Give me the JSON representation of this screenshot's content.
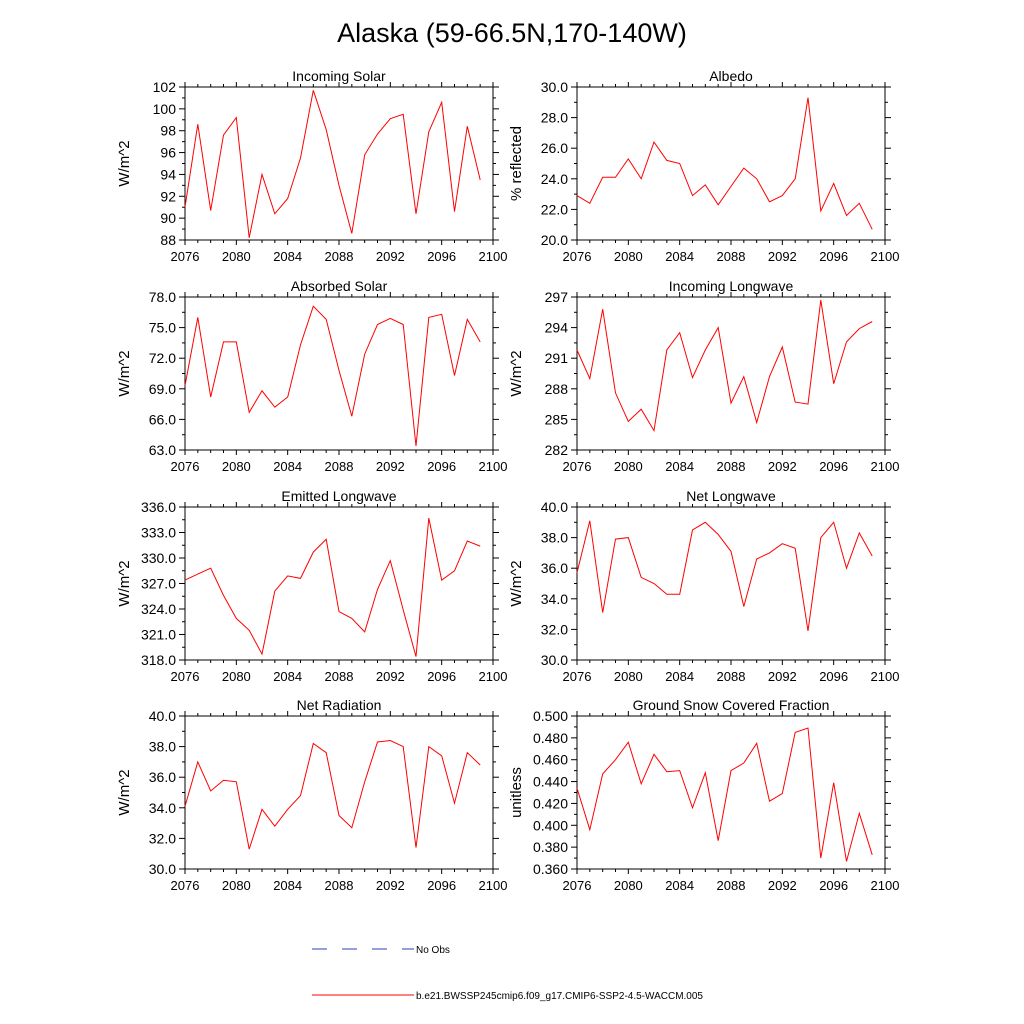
{
  "page_title": "Alaska (59-66.5N,170-140W)",
  "legend": {
    "obs_label": "No Obs",
    "model_label": "b.e21.BWSSP245cmip6.f09_g17.CMIP6-SSP2-4.5-WACCM.005",
    "obs_color": "#2a3fb8",
    "model_color": "#ff0000"
  },
  "chart_data": [
    {
      "type": "line",
      "title": "Incoming Solar",
      "ylabel": "W/m^2",
      "xlim": [
        2076,
        2100
      ],
      "ylim": [
        88,
        102
      ],
      "xticks": [
        2076,
        2080,
        2084,
        2088,
        2092,
        2096,
        2100
      ],
      "yticks": [
        88,
        90,
        92,
        94,
        96,
        98,
        100,
        102
      ],
      "ytick_labels": [
        "88",
        "90",
        "92",
        "94",
        "96",
        "98",
        "100",
        "102"
      ],
      "x": [
        2076,
        2077,
        2078,
        2079,
        2080,
        2081,
        2082,
        2083,
        2084,
        2085,
        2086,
        2087,
        2088,
        2089,
        2090,
        2091,
        2092,
        2093,
        2094,
        2095,
        2096,
        2097,
        2098,
        2099
      ],
      "series": [
        {
          "values": [
            91.0,
            98.6,
            90.7,
            97.6,
            99.2,
            88.2,
            94.0,
            90.4,
            91.8,
            95.5,
            101.7,
            98.1,
            93.0,
            88.6,
            95.8,
            97.7,
            99.1,
            99.5,
            90.4,
            97.9,
            100.6,
            90.6,
            98.4,
            93.5
          ]
        }
      ]
    },
    {
      "type": "line",
      "title": "Albedo",
      "ylabel": "% reflected",
      "xlim": [
        2076,
        2100
      ],
      "ylim": [
        20,
        30
      ],
      "xticks": [
        2076,
        2080,
        2084,
        2088,
        2092,
        2096,
        2100
      ],
      "yticks": [
        20,
        22,
        24,
        26,
        28,
        30
      ],
      "ytick_labels": [
        "20.0",
        "22.0",
        "24.0",
        "26.0",
        "28.0",
        "30.0"
      ],
      "x": [
        2076,
        2077,
        2078,
        2079,
        2080,
        2081,
        2082,
        2083,
        2084,
        2085,
        2086,
        2087,
        2088,
        2089,
        2090,
        2091,
        2092,
        2093,
        2094,
        2095,
        2096,
        2097,
        2098,
        2099
      ],
      "series": [
        {
          "values": [
            22.9,
            22.4,
            24.1,
            24.1,
            25.3,
            24.0,
            26.4,
            25.2,
            25.0,
            22.9,
            23.6,
            22.3,
            23.5,
            24.7,
            24.0,
            22.5,
            22.9,
            24.0,
            29.3,
            21.9,
            23.7,
            21.6,
            22.4,
            20.7
          ]
        }
      ]
    },
    {
      "type": "line",
      "title": "Absorbed Solar",
      "ylabel": "W/m^2",
      "xlim": [
        2076,
        2100
      ],
      "ylim": [
        63,
        78
      ],
      "xticks": [
        2076,
        2080,
        2084,
        2088,
        2092,
        2096,
        2100
      ],
      "yticks": [
        63,
        66,
        69,
        72,
        75,
        78
      ],
      "ytick_labels": [
        "63.0",
        "66.0",
        "69.0",
        "72.0",
        "75.0",
        "78.0"
      ],
      "x": [
        2076,
        2077,
        2078,
        2079,
        2080,
        2081,
        2082,
        2083,
        2084,
        2085,
        2086,
        2087,
        2088,
        2089,
        2090,
        2091,
        2092,
        2093,
        2094,
        2095,
        2096,
        2097,
        2098,
        2099
      ],
      "series": [
        {
          "values": [
            69.3,
            76.0,
            68.2,
            73.6,
            73.6,
            66.7,
            68.8,
            67.2,
            68.2,
            73.3,
            77.1,
            75.8,
            70.8,
            66.3,
            72.4,
            75.3,
            75.9,
            75.3,
            63.4,
            76.0,
            76.3,
            70.3,
            75.8,
            73.6
          ]
        }
      ]
    },
    {
      "type": "line",
      "title": "Incoming Longwave",
      "ylabel": "W/m^2",
      "xlim": [
        2076,
        2100
      ],
      "ylim": [
        282,
        297
      ],
      "xticks": [
        2076,
        2080,
        2084,
        2088,
        2092,
        2096,
        2100
      ],
      "yticks": [
        282,
        285,
        288,
        291,
        294,
        297
      ],
      "ytick_labels": [
        "282",
        "285",
        "288",
        "291",
        "294",
        "297"
      ],
      "x": [
        2076,
        2077,
        2078,
        2079,
        2080,
        2081,
        2082,
        2083,
        2084,
        2085,
        2086,
        2087,
        2088,
        2089,
        2090,
        2091,
        2092,
        2093,
        2094,
        2095,
        2096,
        2097,
        2098,
        2099
      ],
      "series": [
        {
          "values": [
            291.8,
            289.0,
            295.8,
            287.6,
            284.8,
            286.0,
            283.9,
            291.8,
            293.5,
            289.1,
            291.8,
            294.0,
            286.6,
            289.2,
            284.7,
            289.2,
            292.1,
            286.7,
            286.5,
            296.7,
            288.5,
            292.6,
            293.9,
            294.6
          ]
        }
      ]
    },
    {
      "type": "line",
      "title": "Emitted Longwave",
      "ylabel": "W/m^2",
      "xlim": [
        2076,
        2100
      ],
      "ylim": [
        318,
        336
      ],
      "xticks": [
        2076,
        2080,
        2084,
        2088,
        2092,
        2096,
        2100
      ],
      "yticks": [
        318,
        321,
        324,
        327,
        330,
        333,
        336
      ],
      "ytick_labels": [
        "318.0",
        "321.0",
        "324.0",
        "327.0",
        "330.0",
        "333.0",
        "336.0"
      ],
      "x": [
        2076,
        2077,
        2078,
        2079,
        2080,
        2081,
        2082,
        2083,
        2084,
        2085,
        2086,
        2087,
        2088,
        2089,
        2090,
        2091,
        2092,
        2093,
        2094,
        2095,
        2096,
        2097,
        2098,
        2099
      ],
      "series": [
        {
          "values": [
            327.4,
            328.1,
            328.8,
            325.6,
            322.9,
            321.5,
            318.7,
            326.1,
            327.9,
            327.6,
            330.7,
            332.2,
            323.7,
            322.9,
            321.3,
            326.3,
            329.7,
            323.9,
            318.4,
            334.7,
            327.4,
            328.5,
            332.0,
            331.4
          ]
        }
      ]
    },
    {
      "type": "line",
      "title": "Net Longwave",
      "ylabel": "W/m^2",
      "xlim": [
        2076,
        2100
      ],
      "ylim": [
        30,
        40
      ],
      "xticks": [
        2076,
        2080,
        2084,
        2088,
        2092,
        2096,
        2100
      ],
      "yticks": [
        30,
        32,
        34,
        36,
        38,
        40
      ],
      "ytick_labels": [
        "30.0",
        "32.0",
        "34.0",
        "36.0",
        "38.0",
        "40.0"
      ],
      "x": [
        2076,
        2077,
        2078,
        2079,
        2080,
        2081,
        2082,
        2083,
        2084,
        2085,
        2086,
        2087,
        2088,
        2089,
        2090,
        2091,
        2092,
        2093,
        2094,
        2095,
        2096,
        2097,
        2098,
        2099
      ],
      "series": [
        {
          "values": [
            35.7,
            39.1,
            33.1,
            37.9,
            38.0,
            35.4,
            35.0,
            34.3,
            34.3,
            38.5,
            39.0,
            38.2,
            37.1,
            33.5,
            36.6,
            37.0,
            37.6,
            37.3,
            31.9,
            38.0,
            39.0,
            36.0,
            38.3,
            36.8
          ]
        }
      ]
    },
    {
      "type": "line",
      "title": "Net Radiation",
      "ylabel": "W/m^2",
      "xlim": [
        2076,
        2100
      ],
      "ylim": [
        30,
        40
      ],
      "xticks": [
        2076,
        2080,
        2084,
        2088,
        2092,
        2096,
        2100
      ],
      "yticks": [
        30,
        32,
        34,
        36,
        38,
        40
      ],
      "ytick_labels": [
        "30.0",
        "32.0",
        "34.0",
        "36.0",
        "38.0",
        "40.0"
      ],
      "x": [
        2076,
        2077,
        2078,
        2079,
        2080,
        2081,
        2082,
        2083,
        2084,
        2085,
        2086,
        2087,
        2088,
        2089,
        2090,
        2091,
        2092,
        2093,
        2094,
        2095,
        2096,
        2097,
        2098,
        2099
      ],
      "series": [
        {
          "values": [
            34.1,
            37.0,
            35.1,
            35.8,
            35.7,
            31.3,
            33.9,
            32.8,
            33.9,
            34.8,
            38.2,
            37.6,
            33.5,
            32.7,
            35.7,
            38.3,
            38.4,
            38.0,
            31.4,
            38.0,
            37.4,
            34.3,
            37.6,
            36.8
          ]
        }
      ]
    },
    {
      "type": "line",
      "title": "Ground Snow Covered Fraction",
      "ylabel": "unitless",
      "xlim": [
        2076,
        2100
      ],
      "ylim": [
        0.36,
        0.5
      ],
      "xticks": [
        2076,
        2080,
        2084,
        2088,
        2092,
        2096,
        2100
      ],
      "yticks": [
        0.36,
        0.38,
        0.4,
        0.42,
        0.44,
        0.46,
        0.48,
        0.5
      ],
      "ytick_labels": [
        "0.360",
        "0.380",
        "0.400",
        "0.420",
        "0.440",
        "0.460",
        "0.480",
        "0.500"
      ],
      "x": [
        2076,
        2077,
        2078,
        2079,
        2080,
        2081,
        2082,
        2083,
        2084,
        2085,
        2086,
        2087,
        2088,
        2089,
        2090,
        2091,
        2092,
        2093,
        2094,
        2095,
        2096,
        2097,
        2098,
        2099
      ],
      "series": [
        {
          "values": [
            0.434,
            0.396,
            0.447,
            0.46,
            0.476,
            0.438,
            0.465,
            0.449,
            0.45,
            0.416,
            0.448,
            0.386,
            0.45,
            0.457,
            0.475,
            0.422,
            0.429,
            0.485,
            0.489,
            0.37,
            0.439,
            0.367,
            0.411,
            0.373
          ]
        }
      ]
    }
  ]
}
